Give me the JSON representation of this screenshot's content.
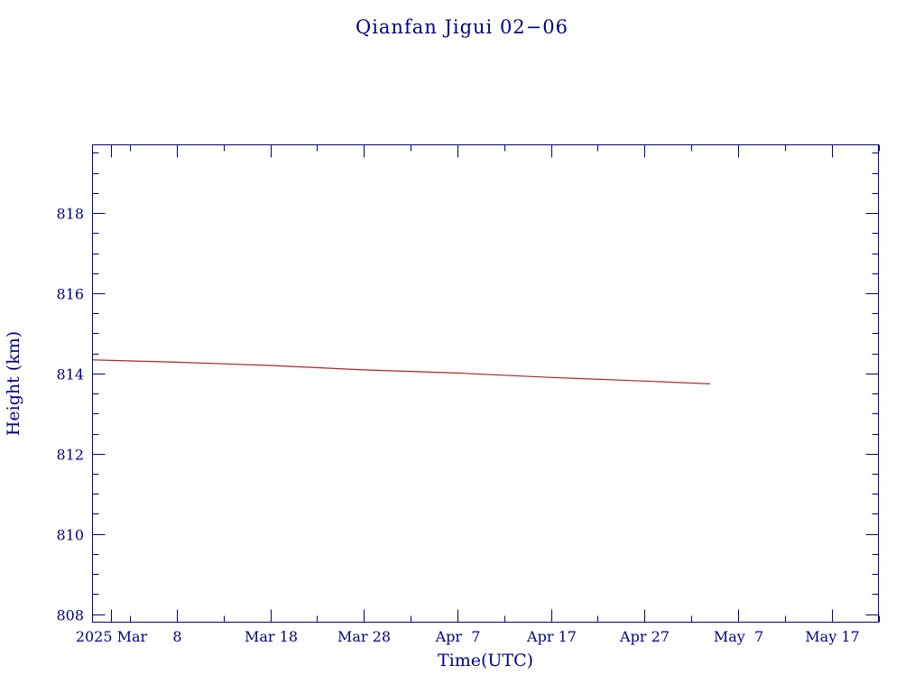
{
  "chart_data": {
    "type": "line",
    "title": "Qianfan Jigui 02−06",
    "xlabel": "Time(UTC)",
    "ylabel": "Height (km)",
    "xlim": [
      "2025-02-27",
      "2025-05-22"
    ],
    "ylim": [
      807.8,
      819.7
    ],
    "x_major_ticks": [
      {
        "date": "2025-03-01",
        "label": "2025 Mar"
      },
      {
        "date": "2025-03-08",
        "label": "8"
      },
      {
        "date": "2025-03-18",
        "label": "Mar 18"
      },
      {
        "date": "2025-03-28",
        "label": "Mar 28"
      },
      {
        "date": "2025-04-07",
        "label": "Apr  7"
      },
      {
        "date": "2025-04-17",
        "label": "Apr 17"
      },
      {
        "date": "2025-04-27",
        "label": "Apr 27"
      },
      {
        "date": "2025-05-07",
        "label": "May  7"
      },
      {
        "date": "2025-05-17",
        "label": "May 17"
      }
    ],
    "y_ticks": [
      808,
      810,
      812,
      814,
      816,
      818
    ],
    "y_tick_labels": [
      "808",
      "810",
      "812",
      "814",
      "816",
      "818"
    ],
    "grid": false,
    "series": [
      {
        "color": "#b22222",
        "x": [
          "2025-02-27",
          "2025-03-08",
          "2025-03-18",
          "2025-03-28",
          "2025-04-07",
          "2025-04-17",
          "2025-04-27",
          "2025-05-04"
        ],
        "values": [
          814.34,
          814.28,
          814.2,
          814.09,
          814.01,
          813.9,
          813.81,
          813.74
        ]
      }
    ]
  }
}
